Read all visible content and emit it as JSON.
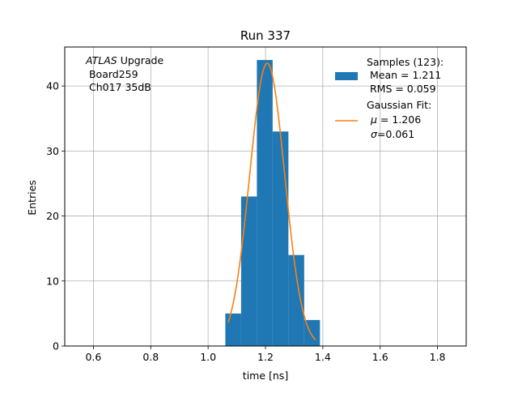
{
  "chart_data": {
    "type": "bar",
    "title": "Run 337",
    "xlabel": "time [ns]",
    "ylabel": "Entries",
    "xlim": [
      0.5,
      1.9
    ],
    "ylim": [
      0,
      46
    ],
    "xticks": [
      0.6,
      0.8,
      1.0,
      1.2,
      1.4,
      1.6,
      1.8
    ],
    "xtick_labels": [
      "0.6",
      "0.8",
      "1.0",
      "1.2",
      "1.4",
      "1.6",
      "1.8"
    ],
    "yticks": [
      0,
      10,
      20,
      30,
      40
    ],
    "ytick_labels": [
      "0",
      "10",
      "20",
      "30",
      "40"
    ],
    "grid": true,
    "legend_position": "top-right",
    "annotation": {
      "line1_italic": "ATLAS",
      "line1_rest": " Upgrade",
      "line2": " Board259",
      "line3": " Ch017 35dB"
    },
    "histogram": {
      "name": "Samples (123):",
      "detail_lines": [
        " Mean = 1.211",
        " RMS = 0.059"
      ],
      "color": "#1f77b4",
      "bin_edges": [
        1.06,
        1.115,
        1.17,
        1.225,
        1.28,
        1.335,
        1.39
      ],
      "counts": [
        5,
        23,
        44,
        33,
        14,
        4
      ]
    },
    "fit": {
      "name": "Gaussian Fit:",
      "detail_mu_symbol": "μ",
      "detail_mu_value": " = 1.206",
      "detail_sigma_symbol": "σ",
      "detail_sigma_value": "=0.061",
      "color": "#ff7f0e",
      "mu": 1.206,
      "sigma": 0.061,
      "amplitude": 43.5,
      "x_range": [
        1.07,
        1.375
      ]
    }
  }
}
